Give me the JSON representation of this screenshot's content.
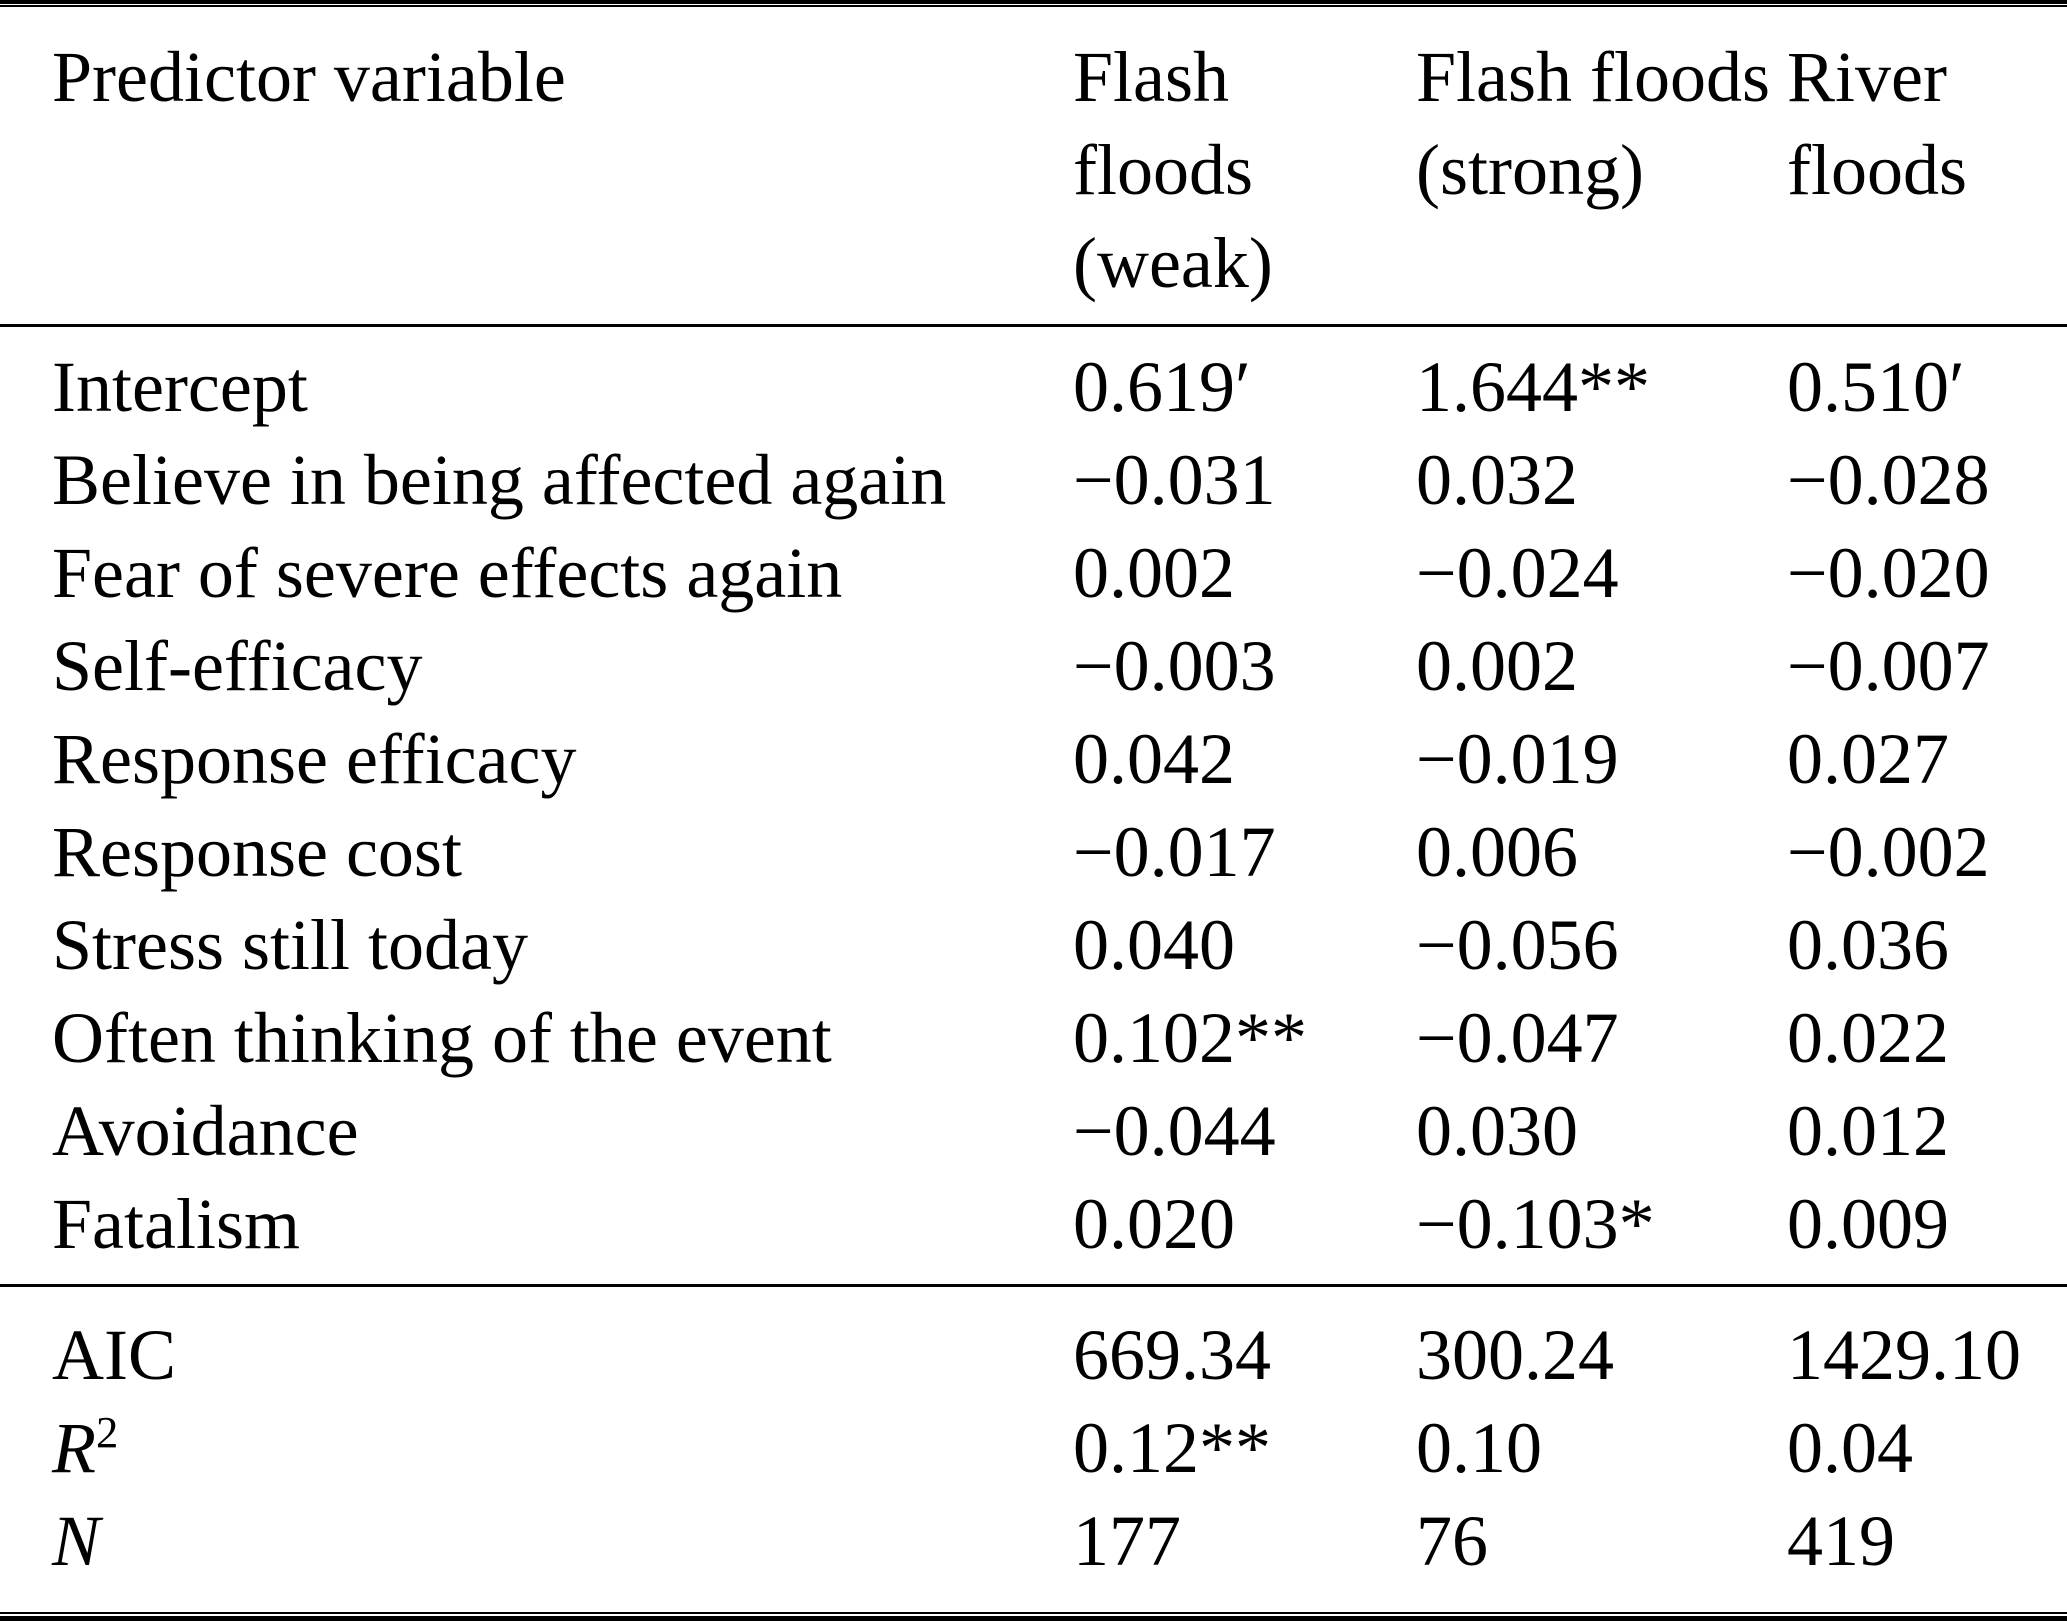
{
  "table": {
    "header": {
      "predictor_label": "Predictor variable",
      "col_labels": [
        "Flash floods (weak)",
        "Flash floods (strong)",
        "River floods"
      ]
    },
    "rows": [
      {
        "label": "Intercept",
        "values": [
          "0.619′",
          "1.644**",
          "0.510′"
        ]
      },
      {
        "label": "Believe in being affected again",
        "values": [
          "−0.031",
          "0.032",
          "−0.028"
        ]
      },
      {
        "label": "Fear of severe effects again",
        "values": [
          "0.002",
          "−0.024",
          "−0.020"
        ]
      },
      {
        "label": "Self-efficacy",
        "values": [
          "−0.003",
          "0.002",
          "−0.007"
        ]
      },
      {
        "label": "Response efficacy",
        "values": [
          "0.042",
          "−0.019",
          "0.027"
        ]
      },
      {
        "label": "Response cost",
        "values": [
          "−0.017",
          "0.006",
          "−0.002"
        ]
      },
      {
        "label": "Stress still today",
        "values": [
          "0.040",
          "−0.056",
          "0.036"
        ]
      },
      {
        "label": "Often thinking of the event",
        "values": [
          "0.102**",
          "−0.047",
          "0.022"
        ]
      },
      {
        "label": "Avoidance",
        "values": [
          "−0.044",
          "0.030",
          "0.012"
        ]
      },
      {
        "label": "Fatalism",
        "values": [
          "0.020",
          "−0.103*",
          "0.009"
        ]
      }
    ],
    "stats": [
      {
        "label": "AIC",
        "sup": "",
        "values": [
          "669.34",
          "300.24",
          "1429.10"
        ]
      },
      {
        "label": "R",
        "sup": "2",
        "values": [
          "0.12**",
          "0.10",
          "0.04"
        ]
      },
      {
        "label": "N",
        "sup": "",
        "values": [
          "177",
          "76",
          "419"
        ]
      }
    ]
  },
  "chart_data": {
    "type": "table",
    "title": "",
    "columns": [
      "Predictor variable",
      "Flash floods (weak)",
      "Flash floods (strong)",
      "River floods"
    ],
    "rows": [
      [
        "Intercept",
        "0.619′",
        "1.644**",
        "0.510′"
      ],
      [
        "Believe in being affected again",
        "−0.031",
        "0.032",
        "−0.028"
      ],
      [
        "Fear of severe effects again",
        "0.002",
        "−0.024",
        "−0.020"
      ],
      [
        "Self-efficacy",
        "−0.003",
        "0.002",
        "−0.007"
      ],
      [
        "Response efficacy",
        "0.042",
        "−0.019",
        "0.027"
      ],
      [
        "Response cost",
        "−0.017",
        "0.006",
        "−0.002"
      ],
      [
        "Stress still today",
        "0.040",
        "−0.056",
        "0.036"
      ],
      [
        "Often thinking of the event",
        "0.102**",
        "−0.047",
        "0.022"
      ],
      [
        "Avoidance",
        "−0.044",
        "0.030",
        "0.012"
      ],
      [
        "Fatalism",
        "0.020",
        "−0.103*",
        "0.009"
      ],
      [
        "AIC",
        "669.34",
        "300.24",
        "1429.10"
      ],
      [
        "R2",
        "0.12**",
        "0.10",
        "0.04"
      ],
      [
        "N",
        "177",
        "76",
        "419"
      ]
    ]
  }
}
